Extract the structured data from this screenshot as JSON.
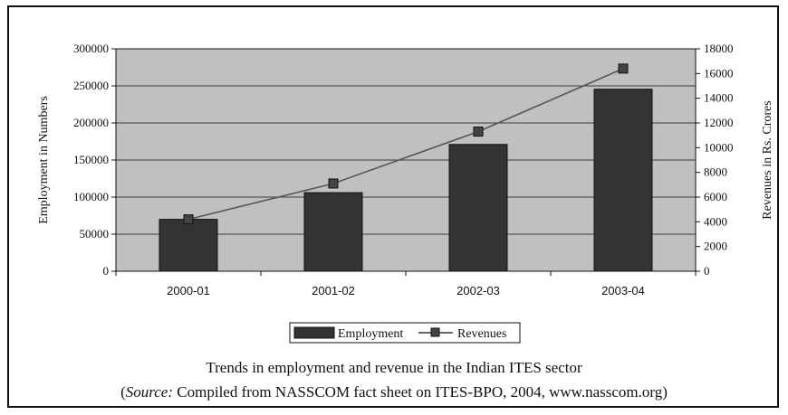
{
  "chart_data": {
    "type": "bar",
    "categories": [
      "2000-01",
      "2001-02",
      "2002-03",
      "2003-04"
    ],
    "series": [
      {
        "name": "Employment",
        "kind": "bar",
        "axis": "left",
        "color": "#333333",
        "values": [
          70000,
          106000,
          171000,
          245500
        ]
      },
      {
        "name": "Revenues",
        "kind": "line",
        "axis": "right",
        "color": "#555555",
        "values": [
          4200,
          7100,
          11300,
          16400
        ]
      }
    ],
    "ylabel_left": "Employment in Numbers",
    "ylabel_right": "Revenues in Rs. Crores",
    "ylim_left": [
      0,
      300000
    ],
    "ylim_right": [
      0,
      18000
    ],
    "yticks_left": [
      "0",
      "50000",
      "100000",
      "150000",
      "200000",
      "250000",
      "300000"
    ],
    "yticks_right": [
      "0",
      "2000",
      "4000",
      "6000",
      "8000",
      "10000",
      "12000",
      "14000",
      "16000",
      "18000"
    ],
    "grid": true,
    "plot_background": "#c0c0c0",
    "legend_placement": "bottom"
  },
  "caption": {
    "title": "Trends in employment and revenue in the Indian ITES sector",
    "source_prefix": "(",
    "source_label": "Source:",
    "source_rest": " Compiled from NASSCOM fact sheet on ITES-BPO, 2004, www.nasscom.org)"
  }
}
